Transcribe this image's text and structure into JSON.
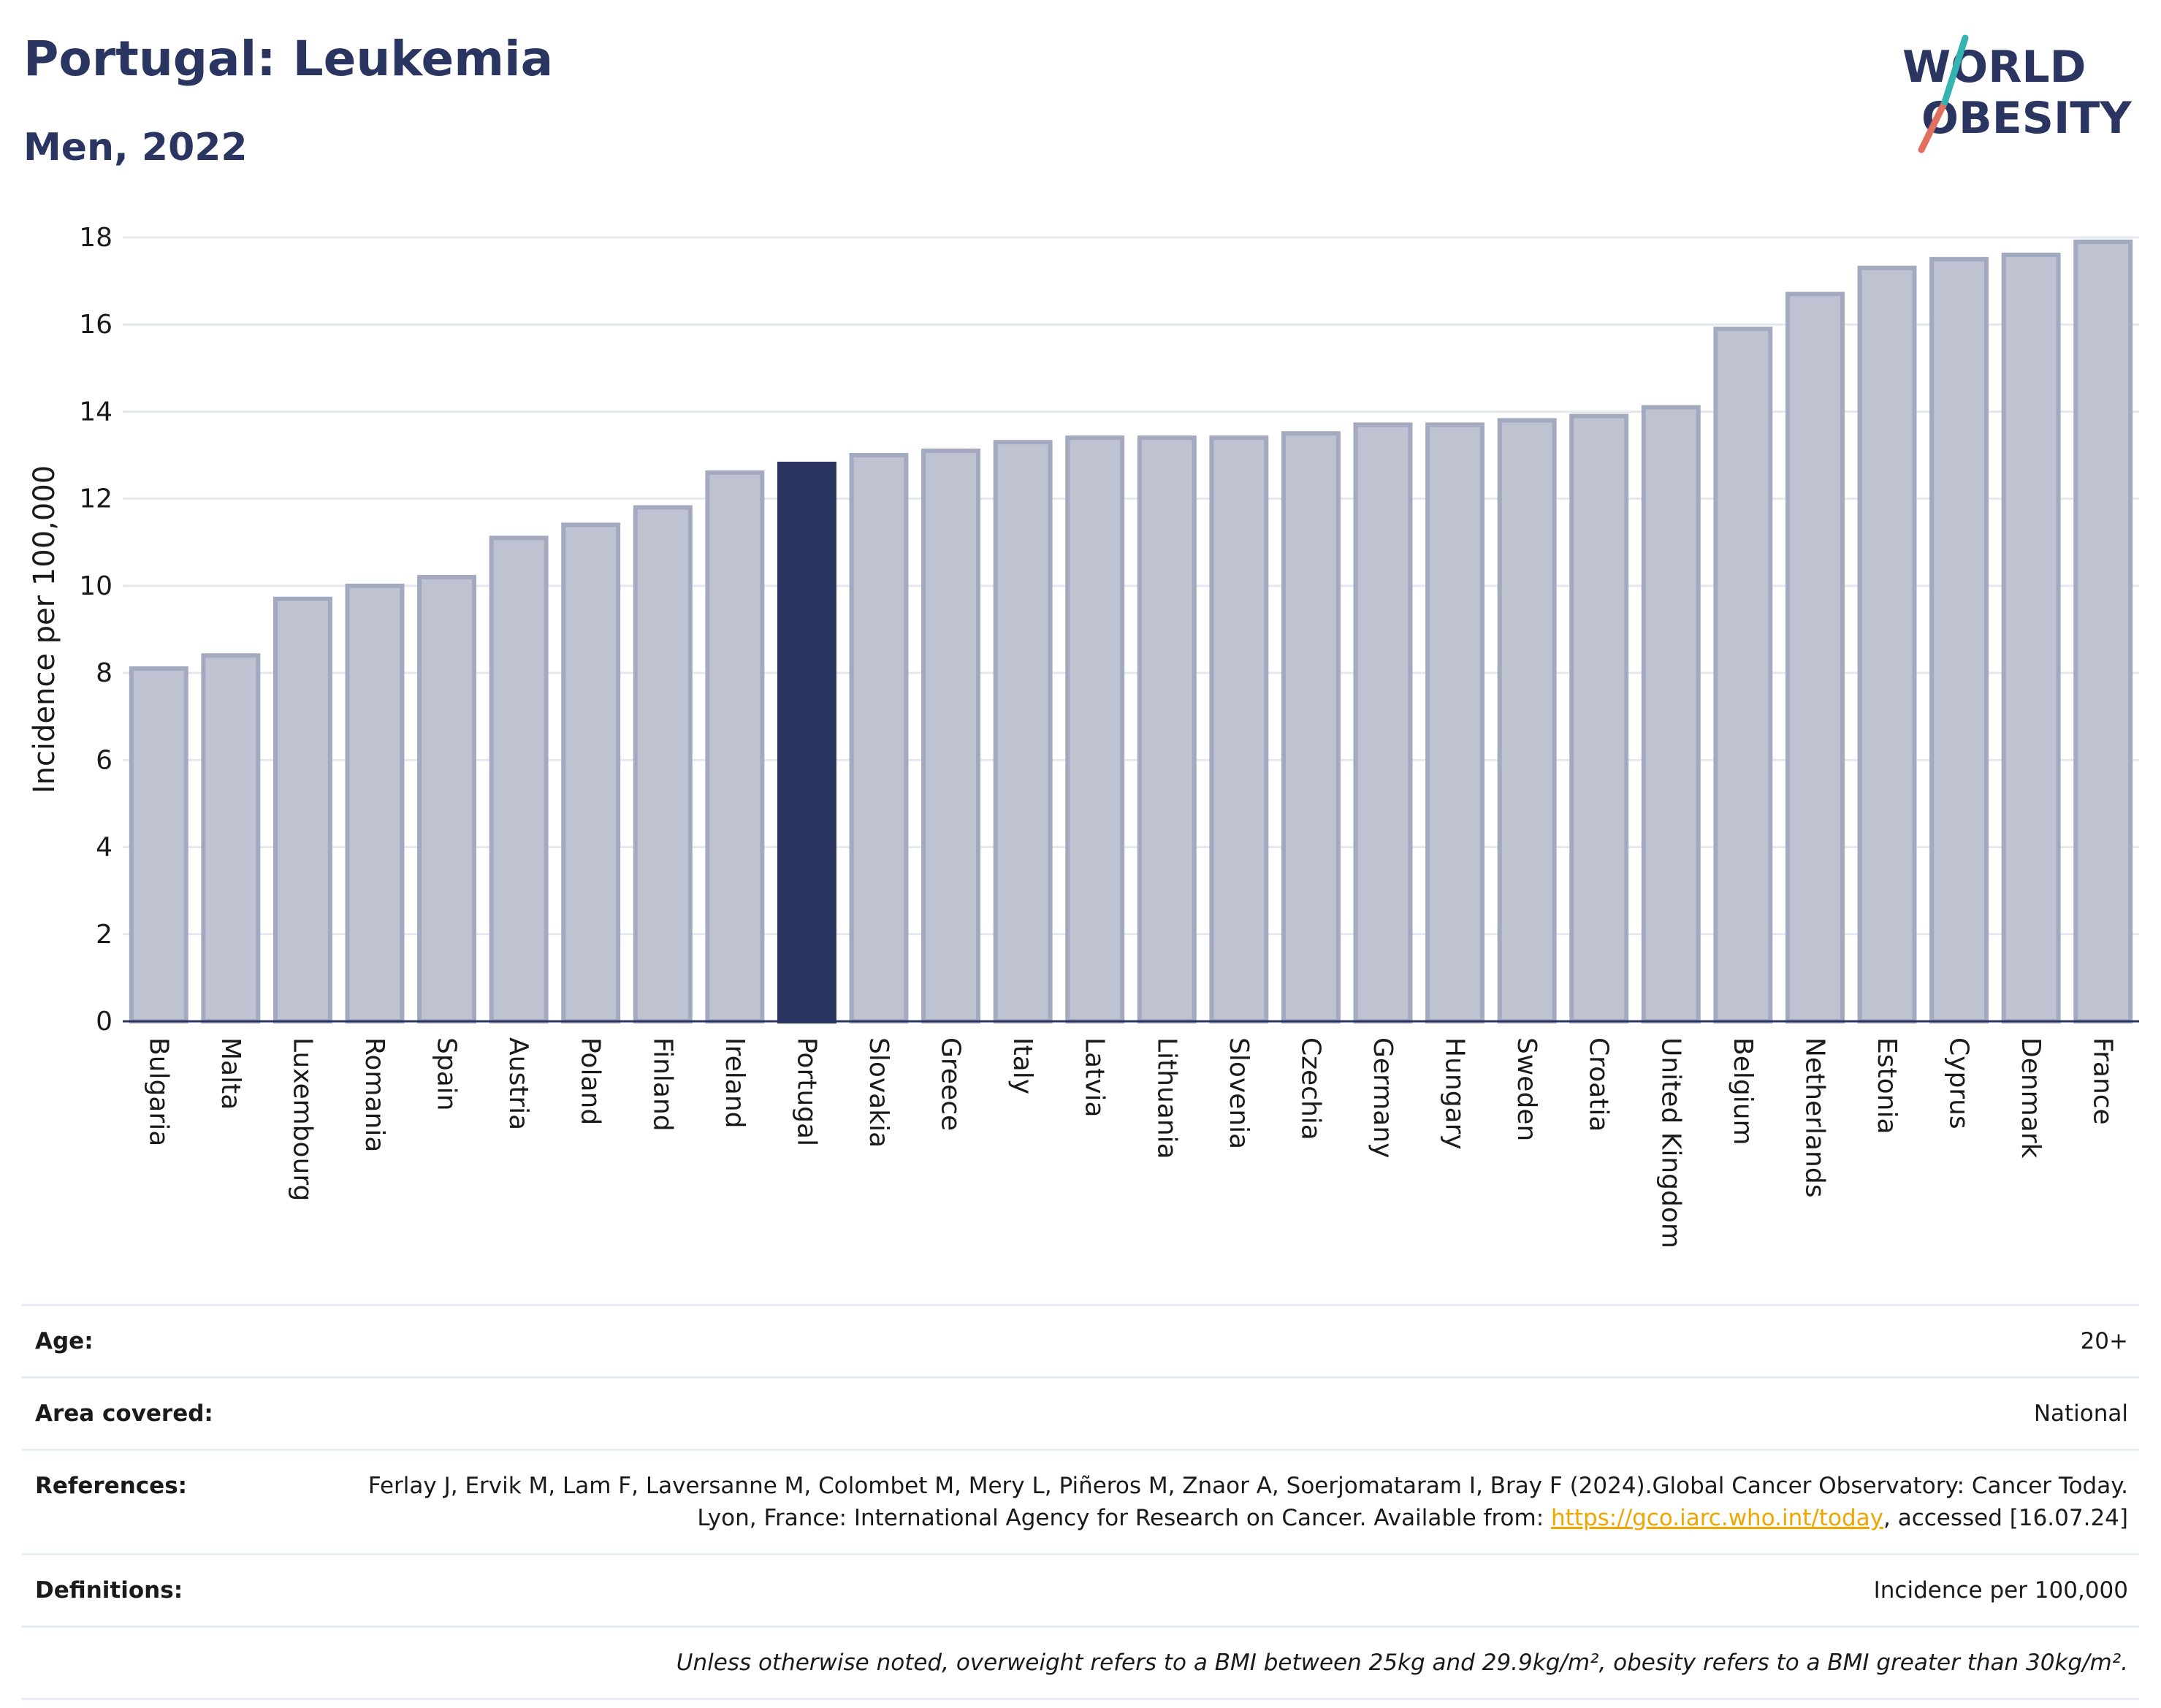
{
  "header": {
    "title": "Portugal: Leukemia",
    "subtitle": "Men, 2022"
  },
  "logo": {
    "line1": "WORLD",
    "line2": "OBESITY",
    "accent_colors": [
      "#e07060",
      "#34b3b0"
    ]
  },
  "chart_data": {
    "type": "bar",
    "ylabel": "Incidence per 100,000",
    "xlabel": "",
    "ylim": [
      0,
      18
    ],
    "yticks": [
      0,
      2,
      4,
      6,
      8,
      10,
      12,
      14,
      16,
      18
    ],
    "grid": true,
    "highlight": "Portugal",
    "colors": {
      "bar": "#bec2d1",
      "bar_border": "#a3a9be",
      "highlight": "#2b3561",
      "grid": "#e6e8f0",
      "axis": "#2b3561"
    },
    "categories": [
      "Bulgaria",
      "Malta",
      "Luxembourg",
      "Romania",
      "Spain",
      "Austria",
      "Poland",
      "Finland",
      "Ireland",
      "Portugal",
      "Slovakia",
      "Greece",
      "Italy",
      "Latvia",
      "Lithuania",
      "Slovenia",
      "Czechia",
      "Germany",
      "Hungary",
      "Sweden",
      "Croatia",
      "United Kingdom",
      "Belgium",
      "Netherlands",
      "Estonia",
      "Cyprus",
      "Denmark",
      "France"
    ],
    "values": [
      8.1,
      8.4,
      9.7,
      10.0,
      10.2,
      11.1,
      11.4,
      11.8,
      12.6,
      12.8,
      13.0,
      13.1,
      13.3,
      13.4,
      13.4,
      13.4,
      13.5,
      13.7,
      13.7,
      13.8,
      13.9,
      14.1,
      15.9,
      16.7,
      17.3,
      17.5,
      17.6,
      17.9
    ]
  },
  "info": {
    "age_label": "Age:",
    "age_value": "20+",
    "area_label": "Area covered:",
    "area_value": "National",
    "references_label": "References:",
    "references_text": "Ferlay J, Ervik M, Lam F, Laversanne M, Colombet M, Mery L, Piñeros M, Znaor A, Soerjomataram I, Bray F (2024).Global Cancer Observatory: Cancer Today. Lyon, France: International Agency for Research on Cancer. Available from:",
    "references_link": "https://gco.iarc.who.int/today",
    "references_suffix": ", accessed [16.07.24]",
    "definitions_label": "Definitions:",
    "definitions_value": "Incidence per 100,000",
    "note": "Unless otherwise noted, overweight refers to a BMI between 25kg and 29.9kg/m², obesity refers to a BMI greater than 30kg/m²."
  }
}
